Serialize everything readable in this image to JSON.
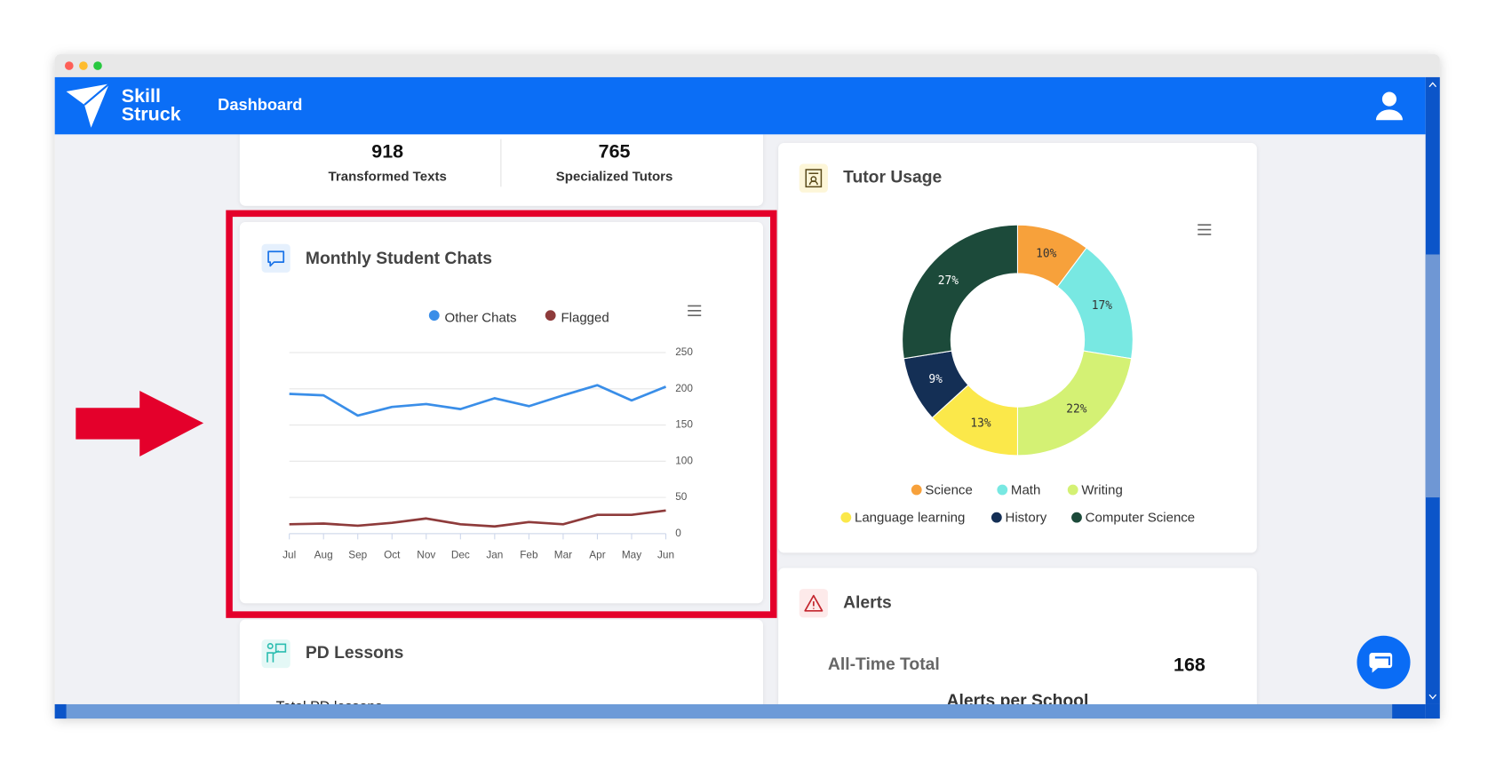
{
  "header": {
    "brand_line1": "Skill",
    "brand_line2": "Struck",
    "nav": "Dashboard"
  },
  "stats": [
    {
      "value": 918,
      "label": "Transformed Texts"
    },
    {
      "value": 765,
      "label": "Specialized Tutors"
    }
  ],
  "chart_data": [
    {
      "type": "line",
      "title": "Monthly Student Chats",
      "categories": [
        "Jul",
        "Aug",
        "Sep",
        "Oct",
        "Nov",
        "Dec",
        "Jan",
        "Feb",
        "Mar",
        "Apr",
        "May",
        "Jun"
      ],
      "series": [
        {
          "name": "Other Chats",
          "color": "#3a8ee8",
          "values": [
            193,
            191,
            163,
            175,
            179,
            172,
            187,
            176,
            191,
            205,
            184,
            203
          ]
        },
        {
          "name": "Flagged",
          "color": "#8e3b3b",
          "values": [
            13,
            14,
            11,
            15,
            21,
            13,
            10,
            16,
            13,
            26,
            26,
            32
          ]
        }
      ],
      "ylim": [
        0,
        250
      ],
      "yticks": [
        0,
        50,
        100,
        150,
        200,
        250
      ],
      "grid": true
    },
    {
      "type": "pie",
      "title": "Tutor Usage",
      "donut": true,
      "categories": [
        "Science",
        "Math",
        "Writing",
        "Language learning",
        "History",
        "Computer Science"
      ],
      "values": [
        10,
        17,
        22,
        13,
        9,
        27
      ],
      "value_labels": [
        "10%",
        "17%",
        "22%",
        "13%",
        "9%",
        "27%"
      ],
      "colors": [
        "#f7a13b",
        "#78e8e2",
        "#d4f174",
        "#fbe84a",
        "#142f55",
        "#1c4a3a"
      ]
    }
  ],
  "alerts": {
    "title": "Alerts",
    "total_label": "All-Time Total",
    "total": 168,
    "subtitle": "Alerts per School"
  },
  "pd_lessons": {
    "title": "PD Lessons",
    "row_label": "Total PD lessons"
  }
}
